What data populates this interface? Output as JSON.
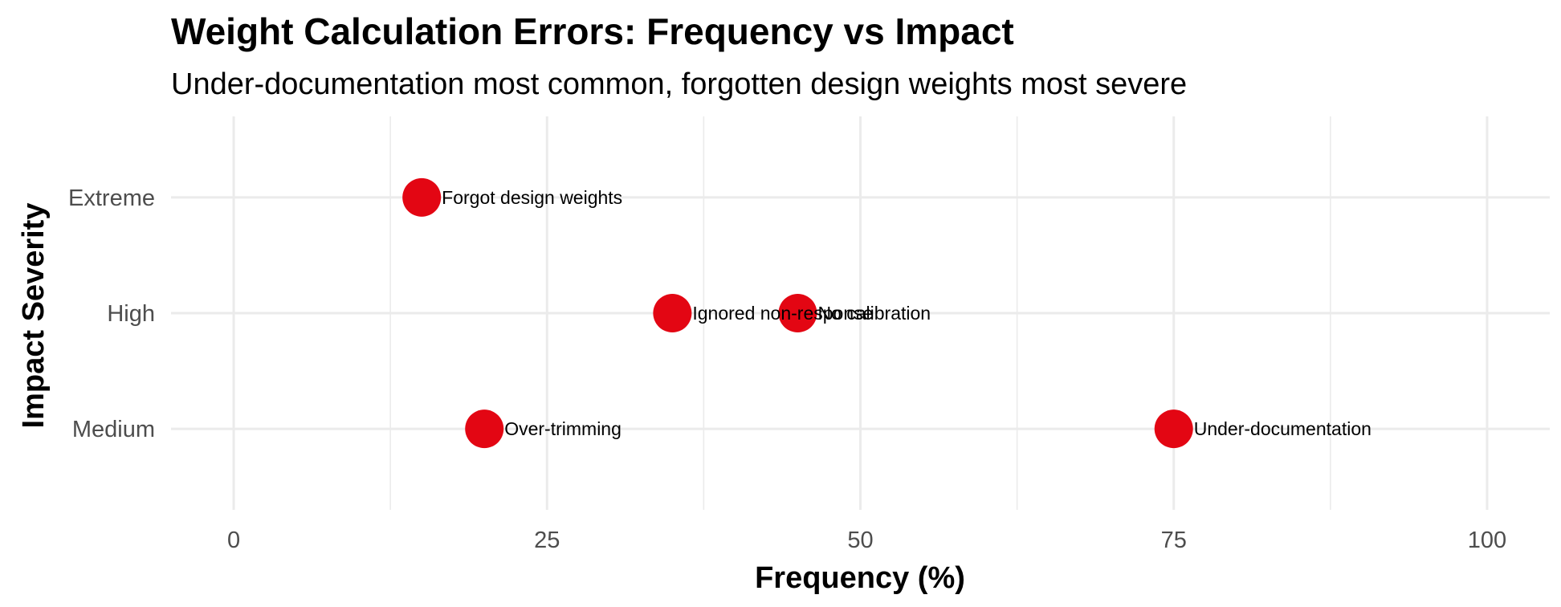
{
  "chart_data": {
    "type": "scatter",
    "title": "Weight Calculation Errors: Frequency vs Impact",
    "subtitle": "Under-documentation most common, forgotten design weights most severe",
    "xlabel": "Frequency (%)",
    "ylabel": "Impact Severity",
    "xlim": [
      -5,
      105
    ],
    "x_ticks": [
      0,
      25,
      50,
      75,
      100
    ],
    "x_tick_labels": [
      "0",
      "25",
      "50",
      "75",
      "100"
    ],
    "x_minor_ticks": [
      12.5,
      37.5,
      62.5,
      87.5
    ],
    "y_categories": [
      "Medium",
      "High",
      "Extreme"
    ],
    "grid": true,
    "legend": "none",
    "point_color": "#e30613",
    "points": [
      {
        "label": "Under-documentation",
        "x": 75,
        "y": "Medium"
      },
      {
        "label": "Over-trimming",
        "x": 20,
        "y": "Medium"
      },
      {
        "label": "Ignored non-response",
        "x": 35,
        "y": "High"
      },
      {
        "label": "No calibration",
        "x": 45,
        "y": "High"
      },
      {
        "label": "Forgot design weights",
        "x": 15,
        "y": "Extreme"
      }
    ]
  }
}
